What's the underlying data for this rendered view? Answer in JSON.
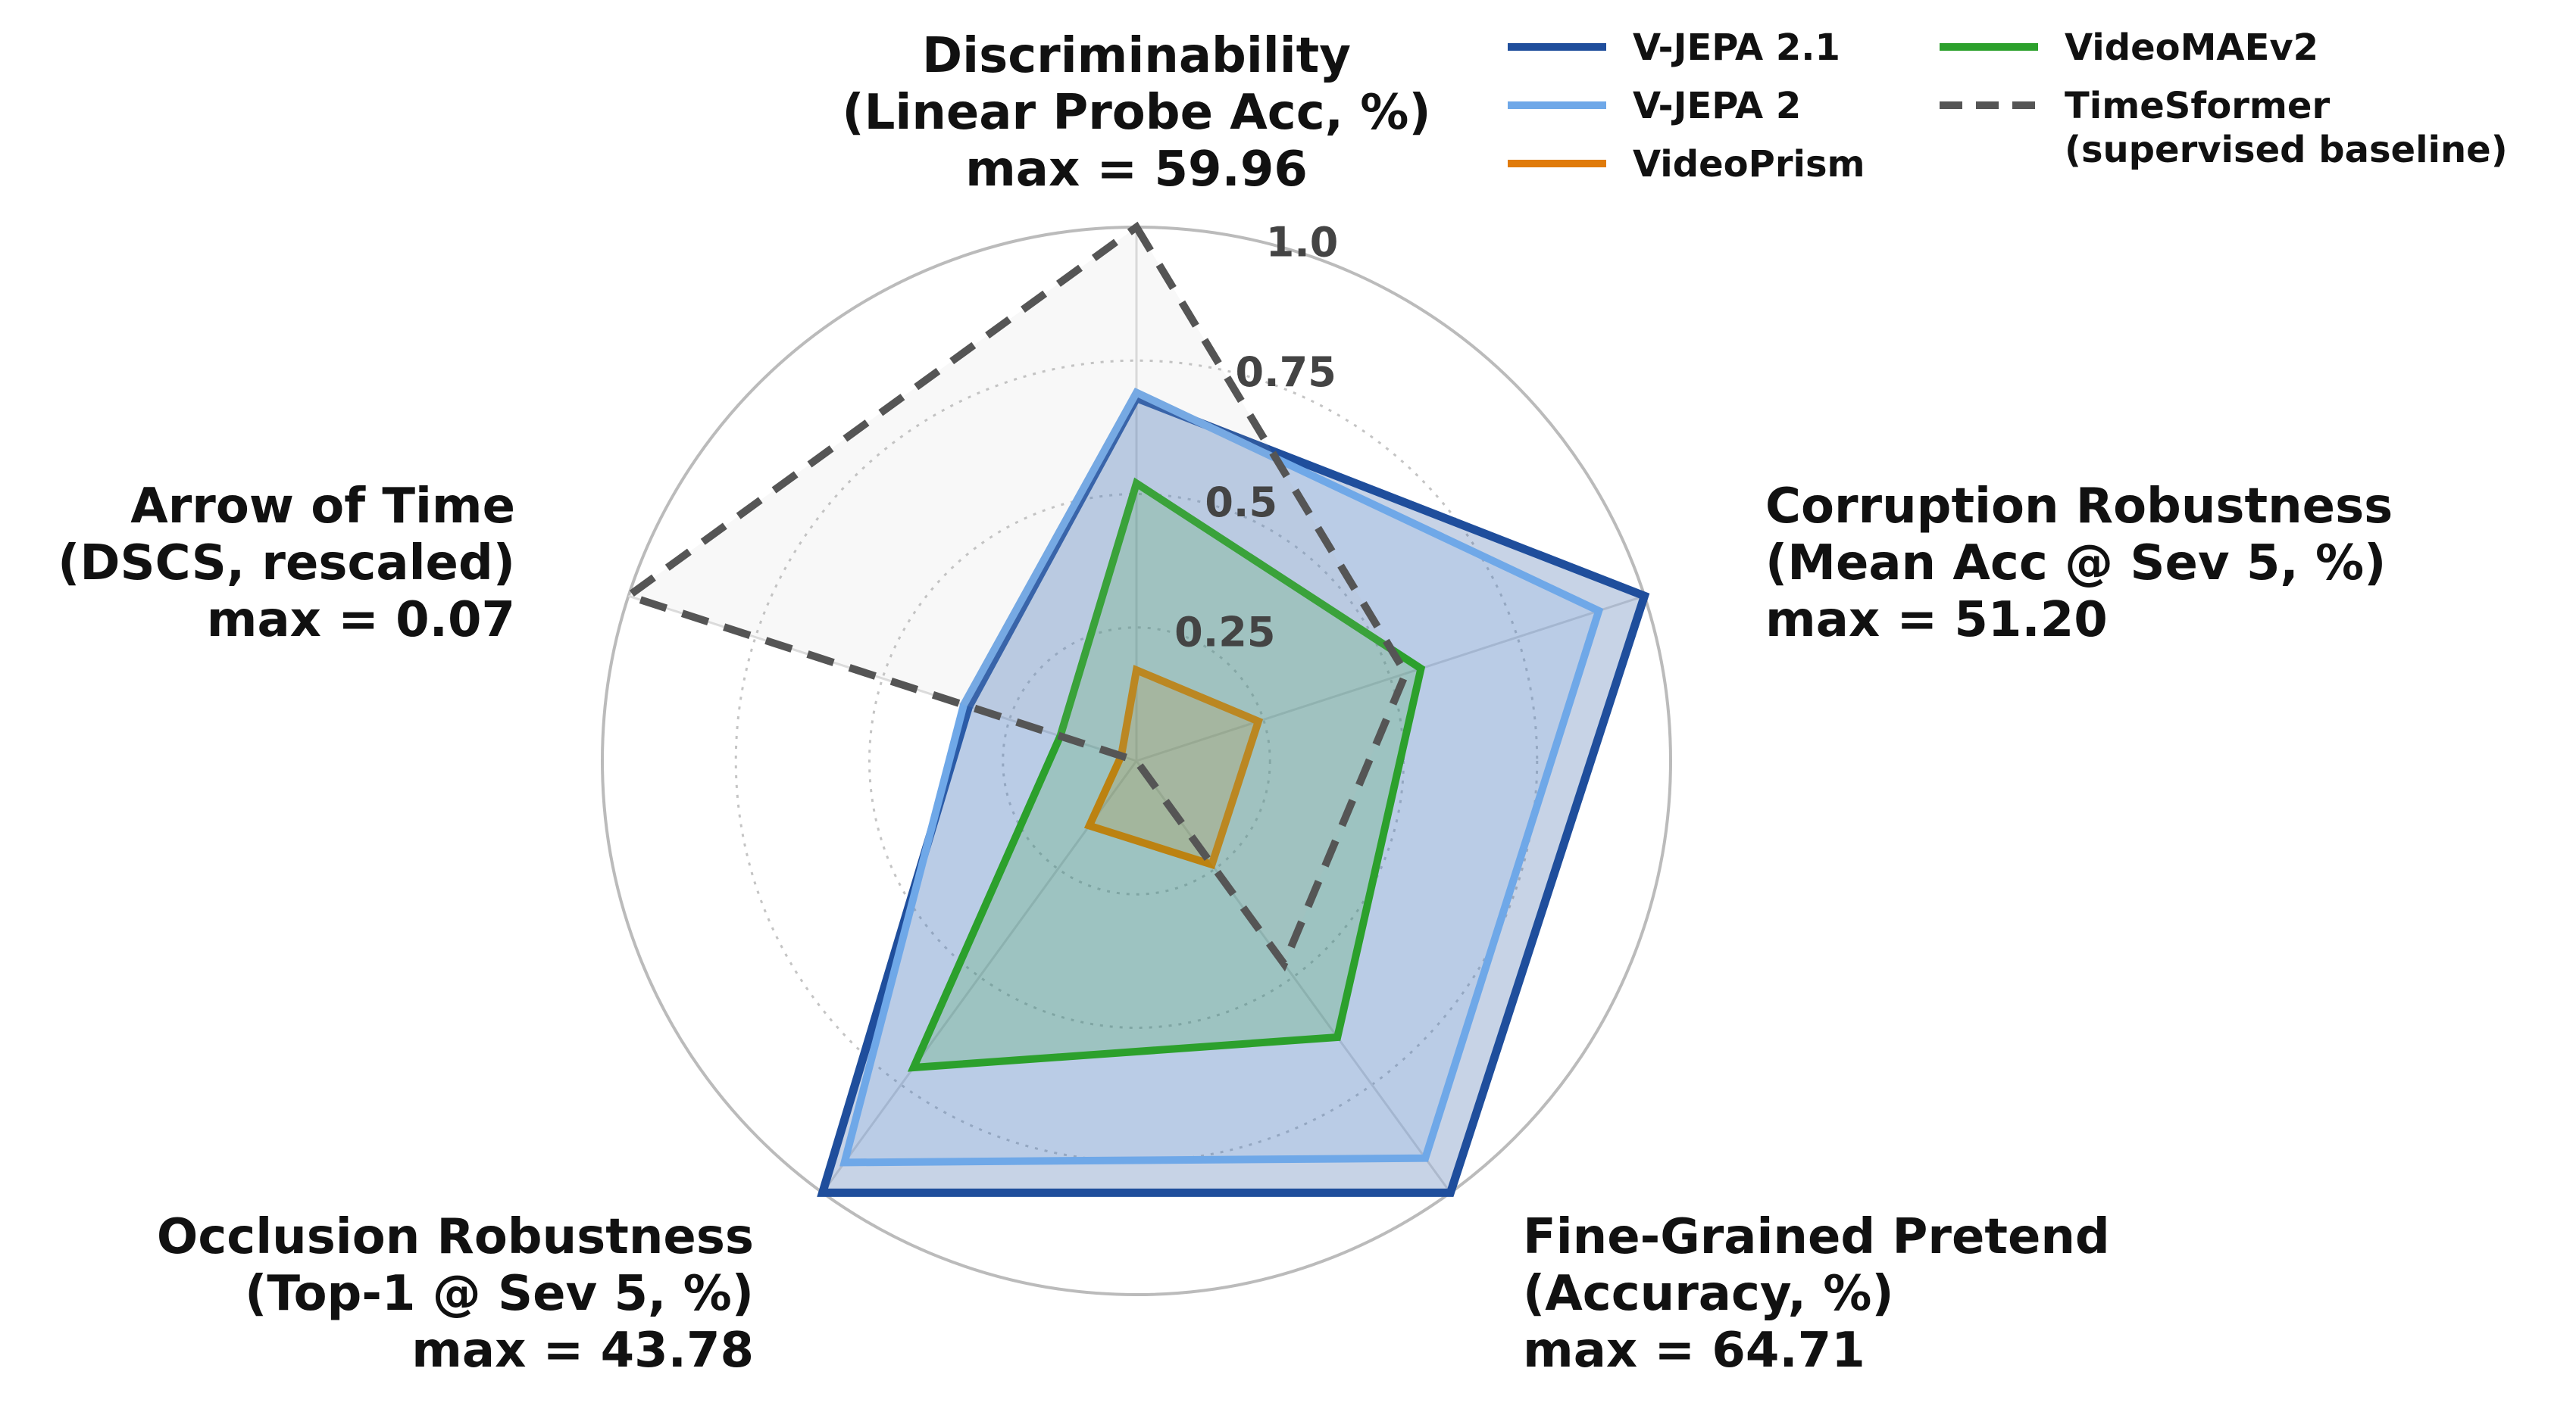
{
  "chart_data": {
    "type": "radar",
    "axes": [
      {
        "label_lines": [
          "Discriminability",
          "(Linear Probe Acc, %)",
          "max = 59.96"
        ]
      },
      {
        "label_lines": [
          "Corruption Robustness",
          "(Mean Acc @ Sev 5, %)",
          "max = 51.20"
        ]
      },
      {
        "label_lines": [
          "Fine-Grained Pretend",
          "(Accuracy, %)",
          "max = 64.71"
        ]
      },
      {
        "label_lines": [
          "Occlusion Robustness",
          "(Top-1 @ Sev 5, %)",
          "max = 43.78"
        ]
      },
      {
        "label_lines": [
          "Arrow of Time",
          "(DSCS, rescaled)",
          "max = 0.07"
        ]
      }
    ],
    "r_ticks": [
      0.25,
      0.5,
      0.75,
      1.0
    ],
    "r_tick_labels": [
      "0.25",
      "0.5",
      "0.75",
      "1.0"
    ],
    "r_range": [
      0,
      1
    ],
    "series": [
      {
        "name": "V-JEPA 2.1",
        "color": "#1f4e9c",
        "style": "solid",
        "fill_opacity": 0.25,
        "values": [
          0.68,
          1.0,
          1.0,
          1.0,
          0.33
        ]
      },
      {
        "name": "V-JEPA 2",
        "color": "#6fa8e8",
        "style": "solid",
        "fill_opacity": 0.15,
        "values": [
          0.69,
          0.91,
          0.92,
          0.93,
          0.34
        ]
      },
      {
        "name": "VideoPrism",
        "color": "#e07b0a",
        "style": "solid",
        "fill_opacity": 0.2,
        "values": [
          0.17,
          0.24,
          0.24,
          0.15,
          0.03
        ]
      },
      {
        "name": "VideoMAEv2",
        "color": "#2ca02c",
        "style": "solid",
        "fill_opacity": 0.2,
        "values": [
          0.52,
          0.56,
          0.64,
          0.71,
          0.15
        ]
      },
      {
        "name": "TimeSformer\n(supervised baseline)",
        "color": "#555555",
        "style": "dashed",
        "fill_opacity": 0.1,
        "values": [
          1.0,
          0.53,
          0.47,
          0.0,
          1.0
        ]
      }
    ],
    "legend": {
      "placement": "top-right",
      "columns": [
        [
          "V-JEPA 2.1",
          "V-JEPA 2",
          "VideoPrism"
        ],
        [
          "VideoMAEv2",
          "TimeSformer\n(supervised baseline)"
        ]
      ]
    },
    "grid": true
  }
}
